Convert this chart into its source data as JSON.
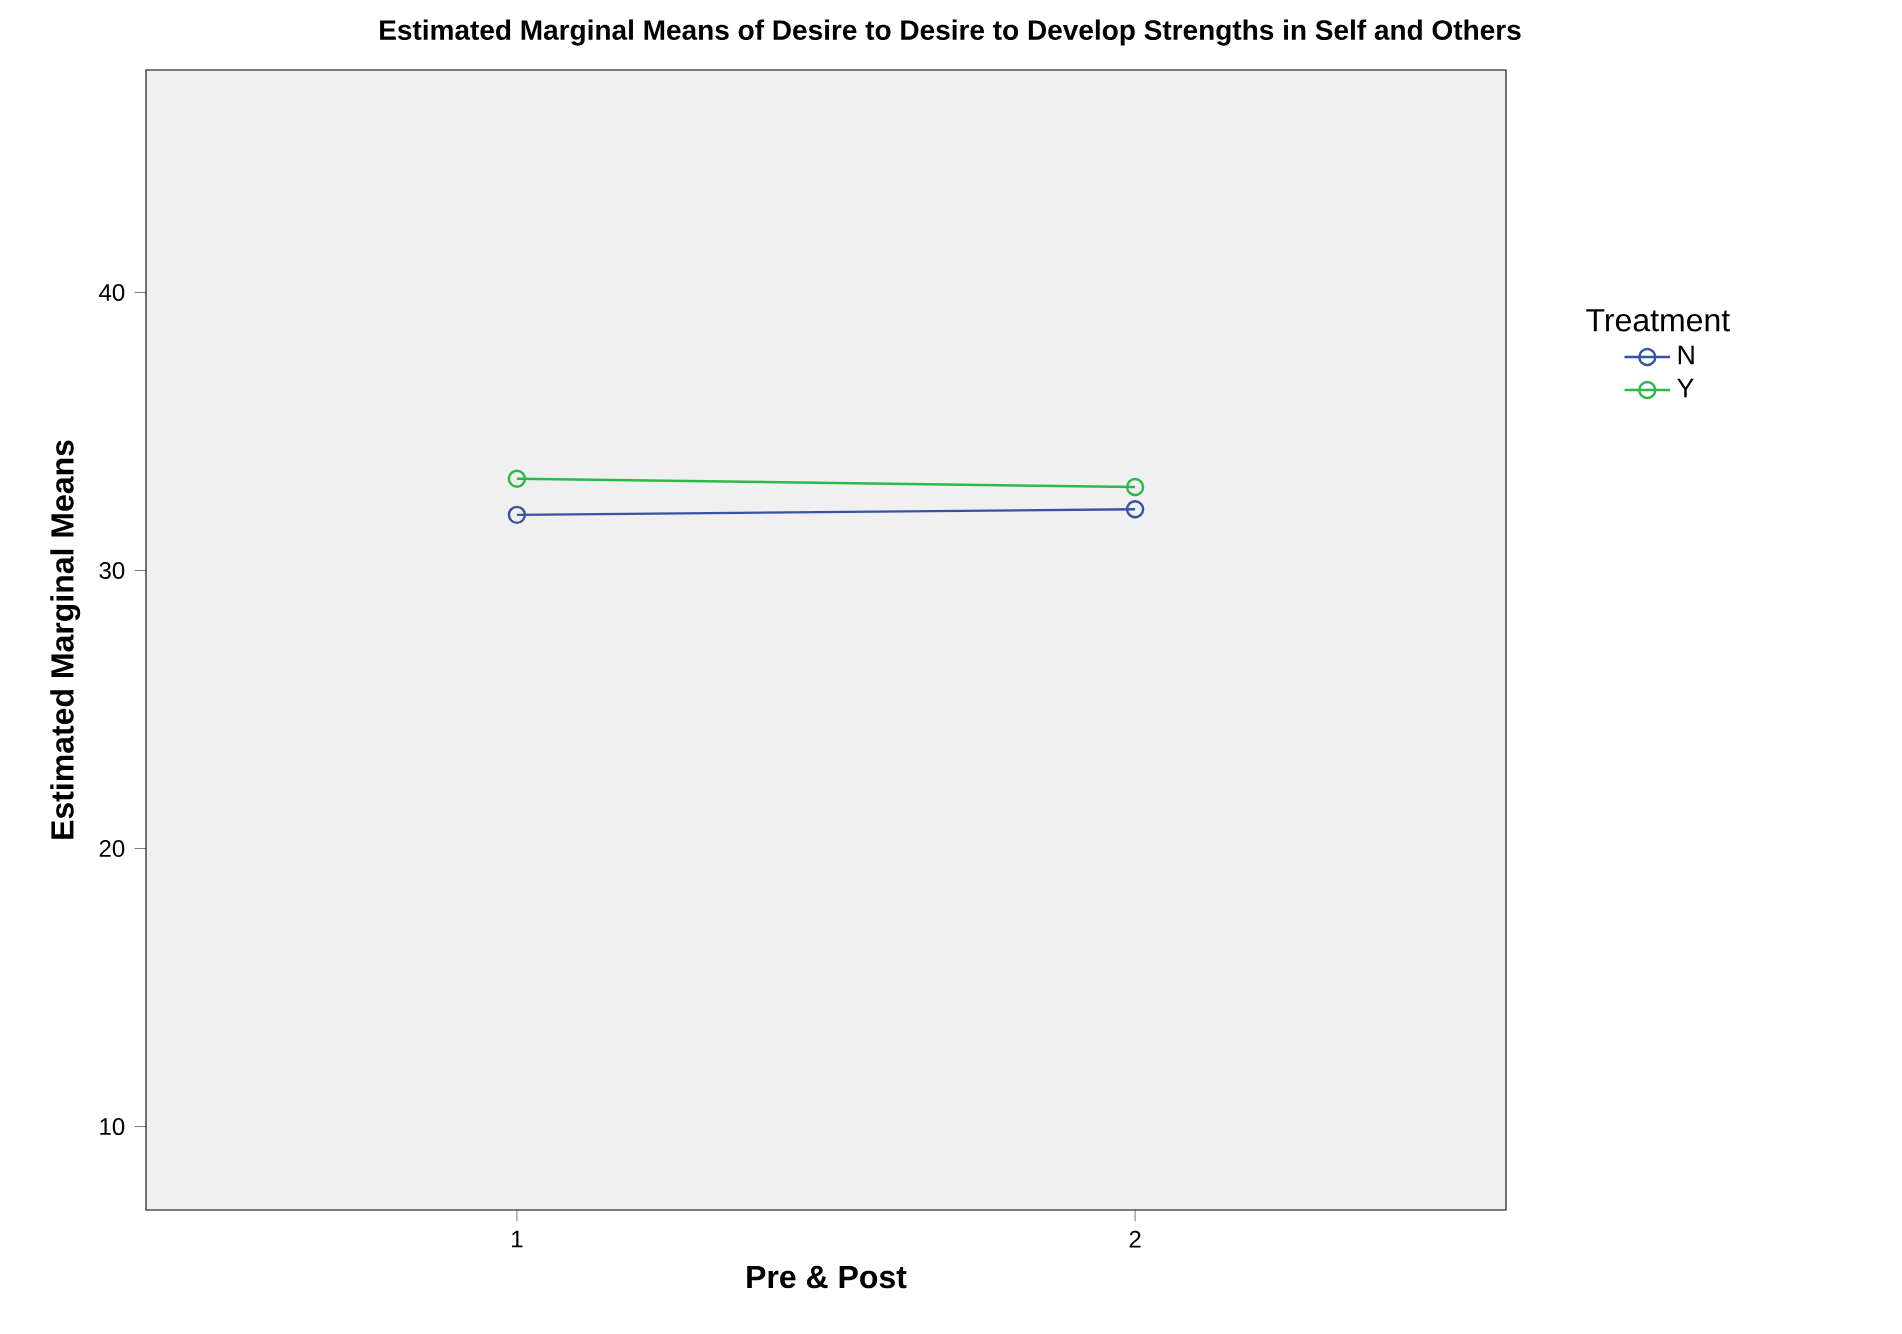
{
  "chart_data": {
    "type": "line",
    "title": "Estimated Marginal Means of Desire to  Desire to Develop Strengths in Self and Others",
    "xlabel": "Pre & Post",
    "ylabel": "Estimated Marginal Means",
    "legend_title": "Treatment",
    "categories": [
      "1",
      "2"
    ],
    "series": [
      {
        "name": "N",
        "color": "#3953a4",
        "values": [
          32.0,
          32.2
        ]
      },
      {
        "name": "Y",
        "color": "#2fb84a",
        "values": [
          33.3,
          33.0
        ]
      }
    ],
    "ylim": [
      7,
      48
    ],
    "yticks": [
      10,
      20,
      30,
      40
    ],
    "marker": "circle",
    "line_style": "solid",
    "legend": "top right",
    "grid": false
  }
}
